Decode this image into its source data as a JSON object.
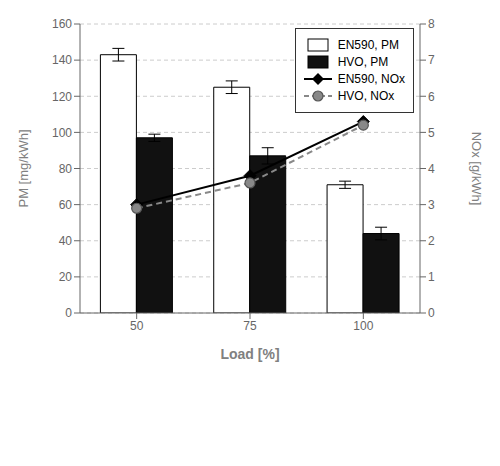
{
  "chart_data": {
    "type": "bar",
    "x_label": "Load [%]",
    "y_label": "PM [mg/kWh]",
    "y2_label": "NOx [g/kWh]",
    "categories": [
      "50",
      "75",
      "100"
    ],
    "series": [
      {
        "name": "EN590, PM",
        "type": "bar",
        "color": "#ffffff",
        "values": [
          143,
          125,
          71
        ],
        "errors": [
          3.5,
          3.5,
          2.0
        ]
      },
      {
        "name": "HVO, PM",
        "type": "bar",
        "color": "#111111",
        "values": [
          97,
          87,
          44
        ],
        "errors": [
          2.0,
          4.5,
          3.5
        ]
      },
      {
        "name": "EN590, NOx",
        "type": "line",
        "axis": "y2",
        "color": "#000000",
        "marker": "diamond",
        "line_style": "solid",
        "values": [
          3.0,
          3.8,
          5.3
        ]
      },
      {
        "name": "HVO, NOx",
        "type": "line",
        "axis": "y2",
        "color": "#888888",
        "marker": "circle",
        "line_style": "dashed",
        "values": [
          2.9,
          3.6,
          5.2
        ]
      }
    ],
    "ylim": [
      0,
      160
    ],
    "yticks": [
      0,
      20,
      40,
      60,
      80,
      100,
      120,
      140,
      160
    ],
    "y2lim": [
      0,
      8
    ],
    "y2ticks": [
      0,
      1,
      2,
      3,
      4,
      5,
      6,
      7,
      8
    ],
    "grid": true,
    "legend": "upper right"
  }
}
